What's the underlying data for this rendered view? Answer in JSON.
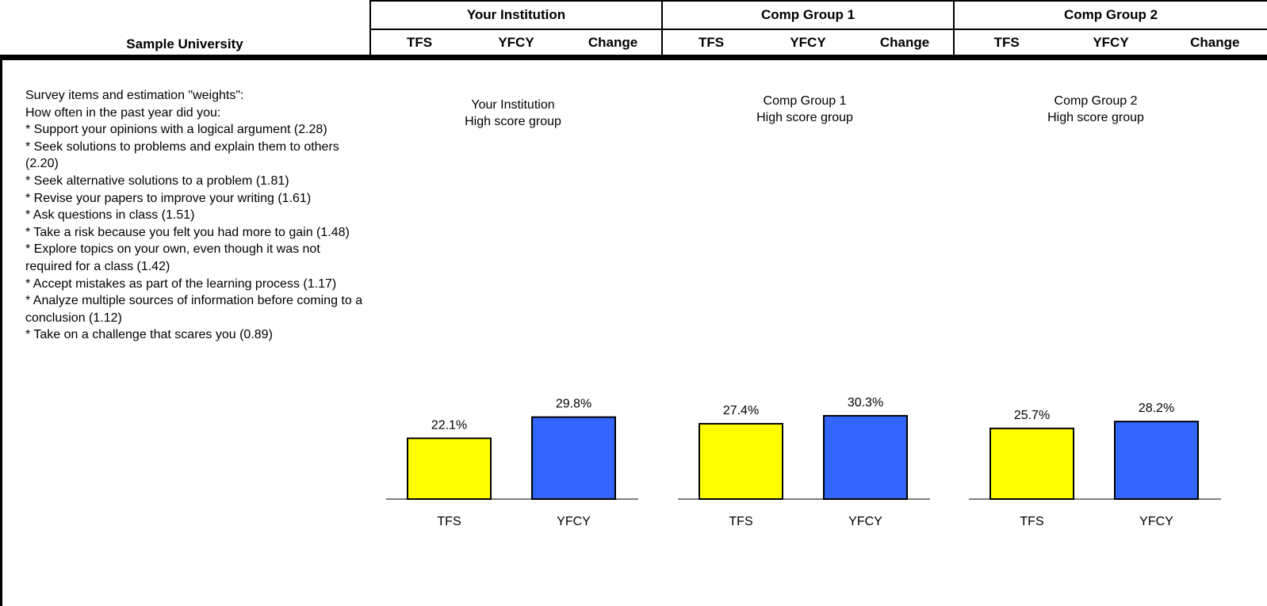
{
  "header": {
    "institution": "Sample University",
    "groups": [
      {
        "label": "Your Institution",
        "sub": [
          "TFS",
          "YFCY",
          "Change"
        ]
      },
      {
        "label": "Comp Group 1",
        "sub": [
          "TFS",
          "YFCY",
          "Change"
        ]
      },
      {
        "label": "Comp Group 2",
        "sub": [
          "TFS",
          "YFCY",
          "Change"
        ]
      }
    ]
  },
  "survey": {
    "lines": [
      "Survey items and estimation \"weights\":",
      "How often in the past year did you:",
      "* Support your opinions with a logical argument (2.28)",
      "* Seek solutions to problems and explain them to others (2.20)",
      "* Seek alternative solutions to a problem (1.81)",
      "* Revise your papers to improve your writing (1.61)",
      "* Ask questions in class (1.51)",
      "* Take a risk because you felt you had more to gain (1.48)",
      "* Explore topics on your own, even though it was not required for a class (1.42)",
      "* Accept mistakes as part of the learning process (1.17)",
      "* Analyze multiple sources of information before coming to a conclusion (1.12)",
      "* Take on a challenge that scares you (0.89)"
    ]
  },
  "chart_data": [
    {
      "type": "bar",
      "title": [
        "Your Institution",
        "High score group"
      ],
      "categories": [
        "TFS",
        "YFCY"
      ],
      "values": [
        22.1,
        29.8
      ],
      "labels": [
        "22.1%",
        "29.8%"
      ],
      "colors": [
        "#ffff00",
        "#3366ff"
      ]
    },
    {
      "type": "bar",
      "title": [
        "Comp Group 1",
        "High score group"
      ],
      "categories": [
        "TFS",
        "YFCY"
      ],
      "values": [
        27.4,
        30.3
      ],
      "labels": [
        "27.4%",
        "30.3%"
      ],
      "colors": [
        "#ffff00",
        "#3366ff"
      ]
    },
    {
      "type": "bar",
      "title": [
        "Comp Group 2",
        "High score group"
      ],
      "categories": [
        "TFS",
        "YFCY"
      ],
      "values": [
        25.7,
        28.2
      ],
      "labels": [
        "25.7%",
        "28.2%"
      ],
      "colors": [
        "#ffff00",
        "#3366ff"
      ]
    }
  ]
}
